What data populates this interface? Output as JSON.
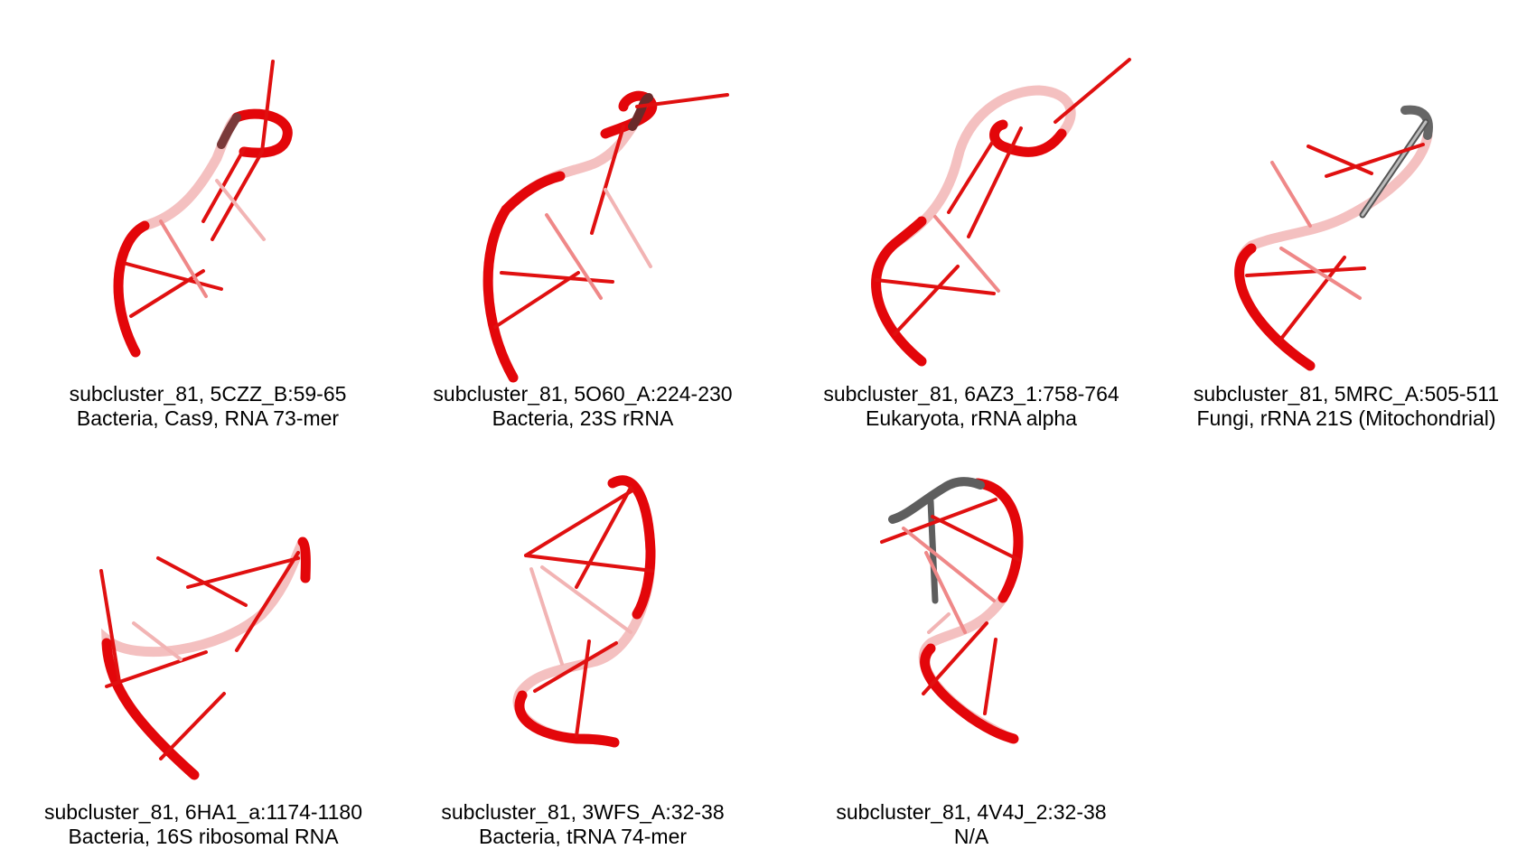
{
  "panels": [
    {
      "caption_line1": "subcluster_81, 5CZZ_B:59-65",
      "caption_line2": "Bacteria, Cas9, RNA 73-mer"
    },
    {
      "caption_line1": "subcluster_81, 5O60_A:224-230",
      "caption_line2": "Bacteria, 23S rRNA"
    },
    {
      "caption_line1": "subcluster_81, 6AZ3_1:758-764",
      "caption_line2": "Eukaryota, rRNA alpha"
    },
    {
      "caption_line1": "subcluster_81, 5MRC_A:505-511",
      "caption_line2": "Fungi, rRNA 21S (Mitochondrial)"
    },
    {
      "caption_line1": "subcluster_81, 6HA1_a:1174-1180",
      "caption_line2": "Bacteria, 16S ribosomal RNA"
    },
    {
      "caption_line1": "subcluster_81, 3WFS_A:32-38",
      "caption_line2": "Bacteria, tRNA 74-mer"
    },
    {
      "caption_line1": "subcluster_81, 4V4J_2:32-38",
      "caption_line2": "N/A"
    }
  ],
  "colors": {
    "backbone": "#e3060a",
    "base": "#e01010",
    "pale": "#f2b4b4",
    "grey": "#6e6e6e"
  }
}
